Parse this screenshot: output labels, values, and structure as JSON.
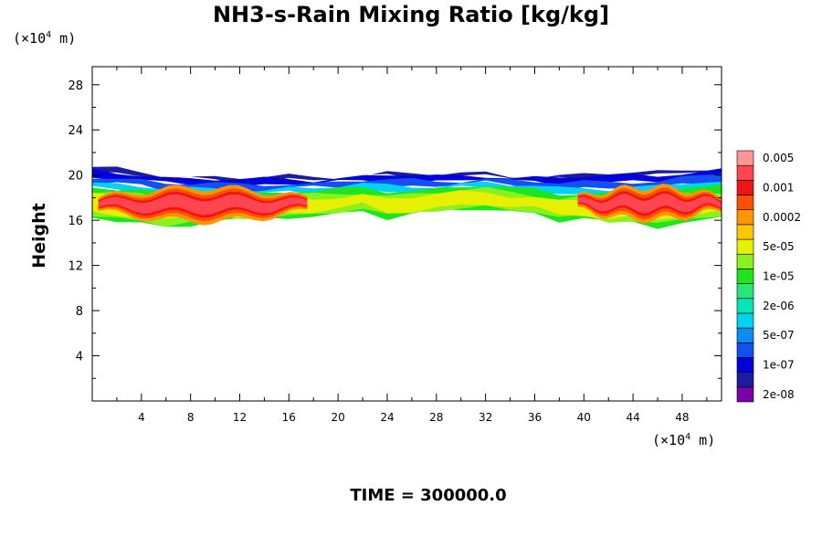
{
  "chart_data": {
    "type": "heatmap",
    "title": "NH3-s-Rain Mixing Ratio [kg/kg]",
    "ylabel": "Height",
    "xlabel": "",
    "x_unit_prefix": "(×10",
    "x_unit_exp": "4",
    "x_unit_suffix": " m)",
    "y_unit_prefix": "(×10",
    "y_unit_exp": "4",
    "y_unit_suffix": " m)",
    "xlim": [
      0,
      51.2
    ],
    "ylim": [
      0,
      29.6
    ],
    "x_ticks": [
      "4",
      "8",
      "12",
      "16",
      "20",
      "24",
      "28",
      "32",
      "36",
      "40",
      "44",
      "48"
    ],
    "y_ticks": [
      "4",
      "8",
      "12",
      "16",
      "20",
      "24",
      "28"
    ],
    "colorbar": {
      "colors": [
        "#7b00a8",
        "#1c1ca0",
        "#0000dc",
        "#1450f0",
        "#0a8cf0",
        "#00d2f0",
        "#00e6b4",
        "#28e678",
        "#1ee61e",
        "#8cf01e",
        "#e6f000",
        "#ffc800",
        "#ff9600",
        "#ff5000",
        "#f01414",
        "#ff4650",
        "#ff9696"
      ],
      "labels": [
        "2e-08",
        "1e-07",
        "5e-07",
        "2e-06",
        "1e-05",
        "5e-05",
        "0.0002",
        "0.001",
        "0.005"
      ]
    },
    "layer": {
      "description": "",
      "x": [
        0,
        2,
        4,
        6,
        8,
        10,
        12,
        14,
        16,
        18,
        20,
        22,
        24,
        26,
        28,
        30,
        32,
        34,
        36,
        38,
        40,
        42,
        44,
        46,
        48,
        51.2
      ],
      "top": [
        20.6,
        20.5,
        20.3,
        20.0,
        19.9,
        19.8,
        19.7,
        19.8,
        19.9,
        19.8,
        19.9,
        20.0,
        20.2,
        20.1,
        20.0,
        20.1,
        20.2,
        20.0,
        19.9,
        19.9,
        20.0,
        20.1,
        20.2,
        20.3,
        20.5,
        20.7
      ],
      "bottom": [
        16.2,
        16.0,
        15.8,
        15.4,
        15.6,
        16.0,
        15.9,
        16.1,
        16.3,
        16.4,
        16.6,
        16.9,
        16.1,
        16.4,
        16.8,
        17.0,
        17.1,
        16.8,
        16.6,
        15.9,
        16.1,
        15.7,
        15.9,
        15.5,
        15.8,
        16.2
      ],
      "core_segments": [
        {
          "x0": 0.5,
          "x1": 17.5,
          "y_center": 17.4,
          "thickness": 1.2
        },
        {
          "x0": 39.5,
          "x1": 51.2,
          "y_center": 17.5,
          "thickness": 1.1
        }
      ]
    }
  },
  "time_label": "TIME = 300000.0"
}
